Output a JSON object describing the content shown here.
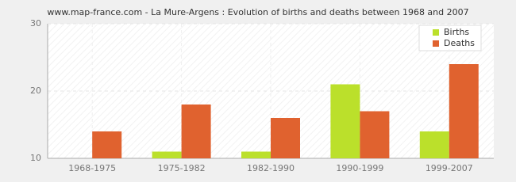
{
  "chart_data": {
    "type": "bar",
    "title": "www.map-france.com - La Mure-Argens : Evolution of births and deaths between 1968 and 2007",
    "categories": [
      "1968-1975",
      "1975-1982",
      "1982-1990",
      "1990-1999",
      "1999-2007"
    ],
    "series": [
      {
        "name": "Births",
        "color": "#bbe02b",
        "values": [
          10,
          11,
          11,
          21,
          14
        ]
      },
      {
        "name": "Deaths",
        "color": "#e0622f",
        "values": [
          14,
          18,
          16,
          17,
          24
        ]
      }
    ],
    "ylim": [
      10,
      30
    ],
    "yticks": [
      10,
      20,
      30
    ],
    "grid": true,
    "legend": "top-right"
  }
}
